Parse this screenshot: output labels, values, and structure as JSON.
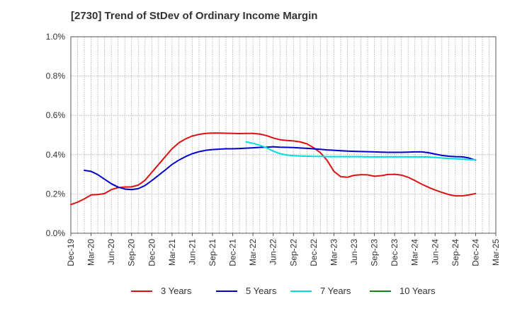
{
  "title": "[2730]  Trend of StDev of Ordinary Income Margin",
  "chart_data": {
    "type": "line",
    "title": "[2730]  Trend of StDev of Ordinary Income Margin",
    "xlabel": "",
    "ylabel": "",
    "ylim": [
      0,
      1.0
    ],
    "y_ticks": [
      "0.0%",
      "0.2%",
      "0.4%",
      "0.6%",
      "0.8%",
      "1.0%"
    ],
    "x_ticks": [
      "Dec-19",
      "Mar-20",
      "Jun-20",
      "Sep-20",
      "Dec-20",
      "Mar-21",
      "Jun-21",
      "Sep-21",
      "Dec-21",
      "Mar-22",
      "Jun-22",
      "Sep-22",
      "Dec-22",
      "Mar-23",
      "Jun-23",
      "Sep-23",
      "Dec-23",
      "Mar-24",
      "Jun-24",
      "Sep-24",
      "Dec-24",
      "Mar-25"
    ],
    "grid": true,
    "legend_position": "bottom",
    "series": [
      {
        "name": "3 Years",
        "color": "#dd1111",
        "points": [
          [
            "Dec-19",
            0.146
          ],
          [
            "Jan-20",
            0.158
          ],
          [
            "Feb-20",
            0.175
          ],
          [
            "Mar-20",
            0.195
          ],
          [
            "Apr-20",
            0.197
          ],
          [
            "May-20",
            0.202
          ],
          [
            "Jun-20",
            0.222
          ],
          [
            "Jul-20",
            0.232
          ],
          [
            "Aug-20",
            0.235
          ],
          [
            "Sep-20",
            0.236
          ],
          [
            "Oct-20",
            0.245
          ],
          [
            "Nov-20",
            0.27
          ],
          [
            "Dec-20",
            0.31
          ],
          [
            "Jan-21",
            0.35
          ],
          [
            "Feb-21",
            0.39
          ],
          [
            "Mar-21",
            0.43
          ],
          [
            "Apr-21",
            0.46
          ],
          [
            "May-21",
            0.48
          ],
          [
            "Jun-21",
            0.495
          ],
          [
            "Jul-21",
            0.503
          ],
          [
            "Aug-21",
            0.508
          ],
          [
            "Sep-21",
            0.51
          ],
          [
            "Oct-21",
            0.51
          ],
          [
            "Nov-21",
            0.509
          ],
          [
            "Dec-21",
            0.508
          ],
          [
            "Jan-22",
            0.507
          ],
          [
            "Feb-22",
            0.508
          ],
          [
            "Mar-22",
            0.508
          ],
          [
            "Apr-22",
            0.505
          ],
          [
            "May-22",
            0.497
          ],
          [
            "Jun-22",
            0.485
          ],
          [
            "Jul-22",
            0.476
          ],
          [
            "Aug-22",
            0.472
          ],
          [
            "Sep-22",
            0.47
          ],
          [
            "Oct-22",
            0.465
          ],
          [
            "Nov-22",
            0.455
          ],
          [
            "Dec-22",
            0.435
          ],
          [
            "Jan-23",
            0.41
          ],
          [
            "Feb-23",
            0.37
          ],
          [
            "Mar-23",
            0.315
          ],
          [
            "Apr-23",
            0.288
          ],
          [
            "May-23",
            0.285
          ],
          [
            "Jun-23",
            0.295
          ],
          [
            "Jul-23",
            0.298
          ],
          [
            "Aug-23",
            0.297
          ],
          [
            "Sep-23",
            0.29
          ],
          [
            "Oct-23",
            0.293
          ],
          [
            "Nov-23",
            0.299
          ],
          [
            "Dec-23",
            0.3
          ],
          [
            "Jan-24",
            0.296
          ],
          [
            "Feb-24",
            0.285
          ],
          [
            "Mar-24",
            0.268
          ],
          [
            "Apr-24",
            0.25
          ],
          [
            "May-24",
            0.234
          ],
          [
            "Jun-24",
            0.22
          ],
          [
            "Jul-24",
            0.208
          ],
          [
            "Aug-24",
            0.197
          ],
          [
            "Sep-24",
            0.19
          ],
          [
            "Oct-24",
            0.19
          ],
          [
            "Nov-24",
            0.195
          ],
          [
            "Dec-24",
            0.202
          ]
        ]
      },
      {
        "name": "5 Years",
        "color": "#0000cc",
        "points": [
          [
            "Feb-20",
            0.32
          ],
          [
            "Mar-20",
            0.315
          ],
          [
            "Apr-20",
            0.298
          ],
          [
            "May-20",
            0.275
          ],
          [
            "Jun-20",
            0.252
          ],
          [
            "Jul-20",
            0.235
          ],
          [
            "Aug-20",
            0.225
          ],
          [
            "Sep-20",
            0.222
          ],
          [
            "Oct-20",
            0.227
          ],
          [
            "Nov-20",
            0.243
          ],
          [
            "Dec-20",
            0.268
          ],
          [
            "Jan-21",
            0.295
          ],
          [
            "Feb-21",
            0.322
          ],
          [
            "Mar-21",
            0.35
          ],
          [
            "Apr-21",
            0.372
          ],
          [
            "May-21",
            0.39
          ],
          [
            "Jun-21",
            0.405
          ],
          [
            "Jul-21",
            0.415
          ],
          [
            "Aug-21",
            0.422
          ],
          [
            "Sep-21",
            0.426
          ],
          [
            "Oct-21",
            0.428
          ],
          [
            "Nov-21",
            0.43
          ],
          [
            "Dec-21",
            0.43
          ],
          [
            "Jan-22",
            0.431
          ],
          [
            "Feb-22",
            0.433
          ],
          [
            "Mar-22",
            0.435
          ],
          [
            "Apr-22",
            0.437
          ],
          [
            "May-22",
            0.438
          ],
          [
            "Jun-22",
            0.44
          ],
          [
            "Jul-22",
            0.438
          ],
          [
            "Aug-22",
            0.437
          ],
          [
            "Sep-22",
            0.436
          ],
          [
            "Oct-22",
            0.434
          ],
          [
            "Nov-22",
            0.432
          ],
          [
            "Dec-22",
            0.43
          ],
          [
            "Jan-23",
            0.427
          ],
          [
            "Feb-23",
            0.424
          ],
          [
            "Mar-23",
            0.422
          ],
          [
            "Apr-23",
            0.42
          ],
          [
            "May-23",
            0.418
          ],
          [
            "Jun-23",
            0.417
          ],
          [
            "Jul-23",
            0.416
          ],
          [
            "Aug-23",
            0.415
          ],
          [
            "Sep-23",
            0.414
          ],
          [
            "Oct-23",
            0.413
          ],
          [
            "Nov-23",
            0.412
          ],
          [
            "Dec-23",
            0.412
          ],
          [
            "Jan-24",
            0.412
          ],
          [
            "Feb-24",
            0.413
          ],
          [
            "Mar-24",
            0.414
          ],
          [
            "Apr-24",
            0.414
          ],
          [
            "May-24",
            0.41
          ],
          [
            "Jun-24",
            0.403
          ],
          [
            "Jul-24",
            0.396
          ],
          [
            "Aug-24",
            0.392
          ],
          [
            "Sep-24",
            0.39
          ],
          [
            "Oct-24",
            0.389
          ],
          [
            "Nov-24",
            0.383
          ],
          [
            "Dec-24",
            0.372
          ]
        ]
      },
      {
        "name": "7 Years",
        "color": "#00dddd",
        "points": [
          [
            "Feb-22",
            0.465
          ],
          [
            "Mar-22",
            0.458
          ],
          [
            "Apr-22",
            0.448
          ],
          [
            "May-22",
            0.435
          ],
          [
            "Jun-22",
            0.418
          ],
          [
            "Jul-22",
            0.405
          ],
          [
            "Aug-22",
            0.398
          ],
          [
            "Sep-22",
            0.395
          ],
          [
            "Oct-22",
            0.393
          ],
          [
            "Nov-22",
            0.392
          ],
          [
            "Dec-22",
            0.391
          ],
          [
            "Jan-23",
            0.391
          ],
          [
            "Feb-23",
            0.39
          ],
          [
            "Mar-23",
            0.39
          ],
          [
            "Apr-23",
            0.39
          ],
          [
            "May-23",
            0.39
          ],
          [
            "Jun-23",
            0.39
          ],
          [
            "Jul-23",
            0.39
          ],
          [
            "Aug-23",
            0.389
          ],
          [
            "Sep-23",
            0.389
          ],
          [
            "Oct-23",
            0.389
          ],
          [
            "Nov-23",
            0.389
          ],
          [
            "Dec-23",
            0.389
          ],
          [
            "Jan-24",
            0.389
          ],
          [
            "Feb-24",
            0.389
          ],
          [
            "Mar-24",
            0.389
          ],
          [
            "Apr-24",
            0.389
          ],
          [
            "May-24",
            0.388
          ],
          [
            "Jun-24",
            0.386
          ],
          [
            "Jul-24",
            0.383
          ],
          [
            "Aug-24",
            0.381
          ],
          [
            "Sep-24",
            0.379
          ],
          [
            "Oct-24",
            0.377
          ],
          [
            "Nov-24",
            0.375
          ],
          [
            "Dec-24",
            0.374
          ]
        ]
      },
      {
        "name": "10 Years",
        "color": "#118811",
        "points": []
      }
    ]
  }
}
